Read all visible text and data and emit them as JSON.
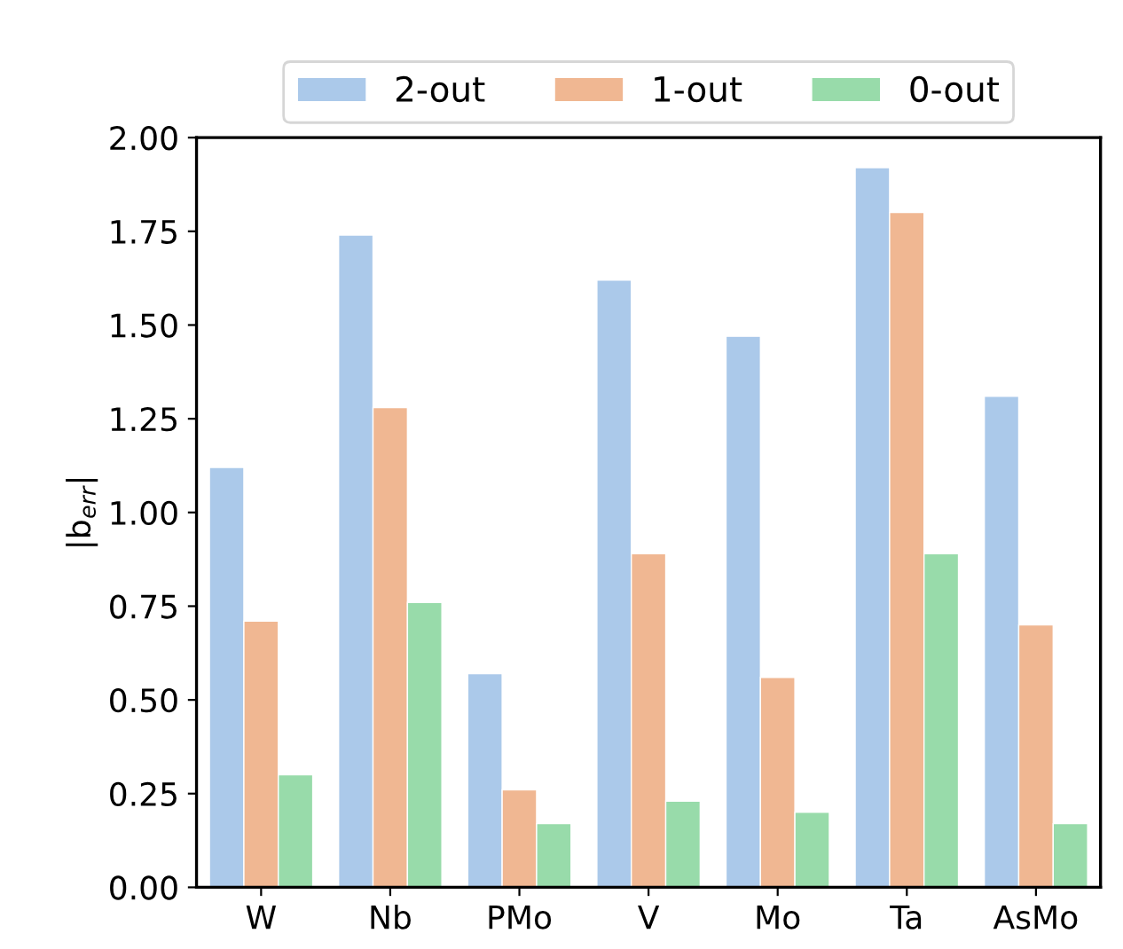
{
  "chart_data": {
    "type": "bar",
    "ylabel": "|b$_{err}$|",
    "categories": [
      "W",
      "Nb",
      "PMo",
      "V",
      "Mo",
      "Ta",
      "AsMo"
    ],
    "series": [
      {
        "name": "2-out",
        "color": "#abc9ea",
        "values": [
          1.12,
          1.74,
          0.57,
          1.62,
          1.47,
          1.92,
          1.31
        ]
      },
      {
        "name": "1-out",
        "color": "#f0b792",
        "values": [
          0.71,
          1.28,
          0.26,
          0.89,
          0.56,
          1.8,
          0.7
        ]
      },
      {
        "name": "0-out",
        "color": "#98dbaa",
        "values": [
          0.3,
          0.76,
          0.17,
          0.23,
          0.2,
          0.89,
          0.17
        ]
      }
    ],
    "ylim": [
      0,
      2.0
    ],
    "yticks": [
      {
        "value": 0,
        "label": "0.00"
      },
      {
        "value": 0.25,
        "label": "0.25"
      },
      {
        "value": 0.5,
        "label": "0.50"
      },
      {
        "value": 0.75,
        "label": "0.75"
      },
      {
        "value": 1.0,
        "label": "1.00"
      },
      {
        "value": 1.25,
        "label": "1.25"
      },
      {
        "value": 1.5,
        "label": "1.50"
      },
      {
        "value": 1.75,
        "label": "1.75"
      },
      {
        "value": 2.0,
        "label": "2.00"
      }
    ],
    "grid": false,
    "legend": "top"
  }
}
